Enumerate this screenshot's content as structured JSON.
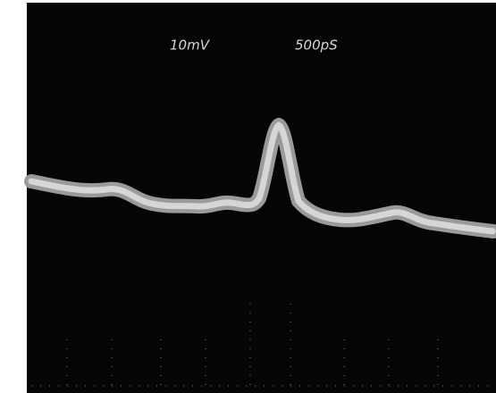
{
  "labels": {
    "vertical_scale": "10mV",
    "horizontal_scale": "500pS"
  }
}
